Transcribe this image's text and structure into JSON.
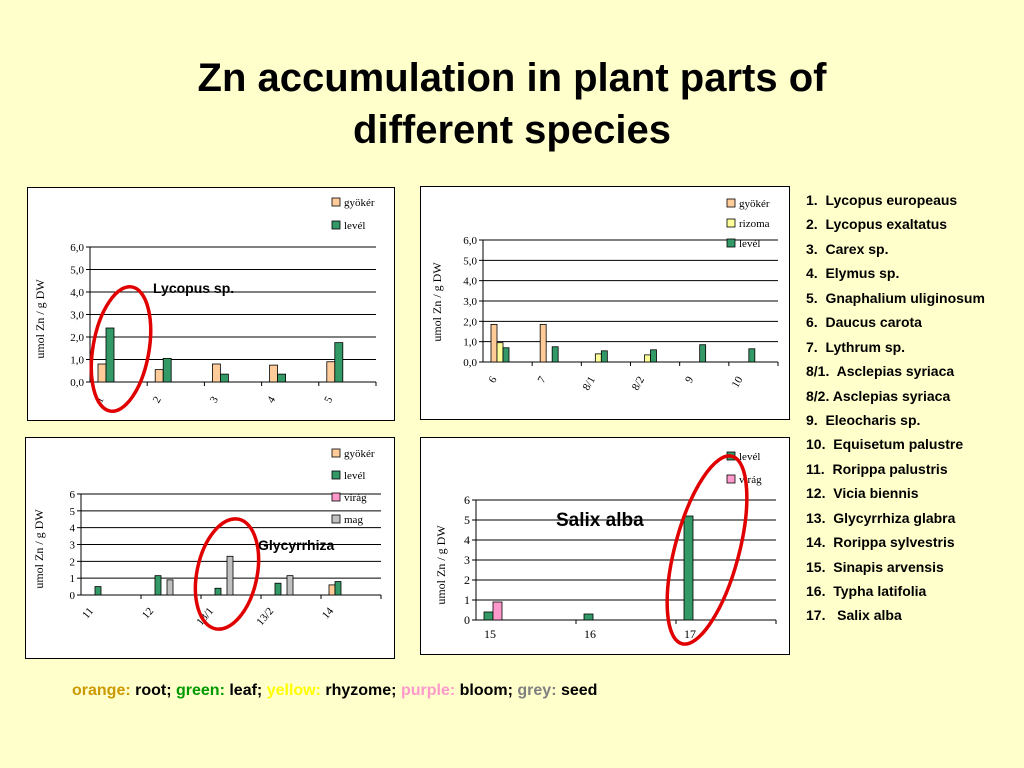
{
  "slide": {
    "title_line1": "Zn accumulation in plant parts of",
    "title_line2": "different species"
  },
  "species_list": [
    "1.  Lycopus europeaus",
    "2.  Lycopus exaltatus",
    "3.  Carex sp.",
    "4.  Elymus sp.",
    "5.  Gnaphalium uliginosum",
    "6.  Daucus carota",
    "7.  Lythrum sp.",
    "8/1.  Asclepias syriaca",
    "8/2. Asclepias syriaca",
    "9.  Eleocharis sp.",
    "10.  Equisetum palustre",
    "11.  Rorippa palustris",
    "12.  Vicia biennis",
    "13.  Glycyrrhiza glabra",
    "14.  Rorippa sylvestris",
    "15.  Sinapis arvensis",
    "16.  Typha latifolia",
    "17.   Salix alba"
  ],
  "color_key": [
    {
      "label": "orange:",
      "color": "#cc9900"
    },
    {
      "label": " root; ",
      "color": "#000000"
    },
    {
      "label": "green:",
      "color": "#009900"
    },
    {
      "label": " leaf; ",
      "color": "#000000"
    },
    {
      "label": "yellow:",
      "color": "#ffff00"
    },
    {
      "label": " rhyzome; ",
      "color": "#000000"
    },
    {
      "label": "purple:",
      "color": "#ff99cc"
    },
    {
      "label": " bloom; ",
      "color": "#000000"
    },
    {
      "label": "grey:",
      "color": "#808080"
    },
    {
      "label": " seed",
      "color": "#000000"
    }
  ],
  "colors": {
    "gyoker": "#ffcc99",
    "rizoma": "#ffff99",
    "level": "#339966",
    "virag": "#ff99cc",
    "mag": "#c0c0c0",
    "highlight": "#e00000"
  },
  "chart_data": [
    {
      "type": "bar",
      "ylabel": "umol Zn / g DW",
      "ylim": [
        0,
        6
      ],
      "yticks": [
        0,
        1,
        2,
        3,
        4,
        5,
        6
      ],
      "ytick_labels": [
        "0,0",
        "1,0",
        "2,0",
        "3,0",
        "4,0",
        "5,0",
        "6,0"
      ],
      "categories": [
        "1",
        "2",
        "3",
        "4",
        "5"
      ],
      "series": [
        {
          "name": "gyökér",
          "color": "#ffcc99",
          "values": [
            0.8,
            0.55,
            0.8,
            0.75,
            0.9
          ]
        },
        {
          "name": "levél",
          "color": "#339966",
          "values": [
            2.4,
            1.05,
            0.35,
            0.35,
            1.75
          ]
        }
      ],
      "annotation": "Lycopus sp.",
      "legend": "top-right",
      "grid": true
    },
    {
      "type": "bar",
      "ylabel": "umol Zn / g DW",
      "ylim": [
        0,
        6
      ],
      "yticks": [
        0,
        1,
        2,
        3,
        4,
        5,
        6
      ],
      "ytick_labels": [
        "0,0",
        "1,0",
        "2,0",
        "3,0",
        "4,0",
        "5,0",
        "6,0"
      ],
      "categories": [
        "6",
        "7",
        "8/1",
        "8/2",
        "9",
        "10"
      ],
      "series": [
        {
          "name": "gyökér",
          "color": "#ffcc99",
          "values": [
            1.85,
            1.85,
            0,
            0,
            0,
            0
          ]
        },
        {
          "name": "rizoma",
          "color": "#ffff99",
          "values": [
            0.95,
            0,
            0.4,
            0.35,
            0,
            0
          ]
        },
        {
          "name": "levél",
          "color": "#339966",
          "values": [
            0.7,
            0.75,
            0.55,
            0.6,
            0.85,
            0.65
          ]
        }
      ],
      "legend": "top-right",
      "grid": true
    },
    {
      "type": "bar",
      "ylabel": "umol Zn / g DW",
      "ylim": [
        0,
        6
      ],
      "yticks": [
        0,
        1,
        2,
        3,
        4,
        5,
        6
      ],
      "ytick_labels": [
        "0",
        "1",
        "2",
        "3",
        "4",
        "5",
        "6"
      ],
      "categories": [
        "11",
        "12",
        "13/1",
        "13/2",
        "14"
      ],
      "series": [
        {
          "name": "gyökér",
          "color": "#ffcc99",
          "values": [
            0,
            0,
            0,
            0,
            0.6
          ]
        },
        {
          "name": "levél",
          "color": "#339966",
          "values": [
            0.5,
            1.15,
            0.4,
            0.7,
            0.8
          ]
        },
        {
          "name": "virág",
          "color": "#ff99cc",
          "values": [
            0,
            0,
            0,
            0,
            0
          ]
        },
        {
          "name": "mag",
          "color": "#c0c0c0",
          "values": [
            0,
            0.9,
            2.3,
            1.15,
            0
          ]
        }
      ],
      "annotation": "Glycyrrhiza",
      "legend": "top-right",
      "grid": true
    },
    {
      "type": "bar",
      "ylabel": "umol Zn / g DW",
      "ylim": [
        0,
        6
      ],
      "yticks": [
        0,
        1,
        2,
        3,
        4,
        5,
        6
      ],
      "ytick_labels": [
        "0",
        "1",
        "2",
        "3",
        "4",
        "5",
        "6"
      ],
      "categories": [
        "15",
        "16",
        "17"
      ],
      "series": [
        {
          "name": "levél",
          "color": "#339966",
          "values": [
            0.4,
            0.3,
            5.2
          ]
        },
        {
          "name": "virág",
          "color": "#ff99cc",
          "values": [
            0.9,
            0,
            0
          ]
        }
      ],
      "annotation": "Salix alba",
      "legend": "top-right",
      "grid": true
    }
  ]
}
